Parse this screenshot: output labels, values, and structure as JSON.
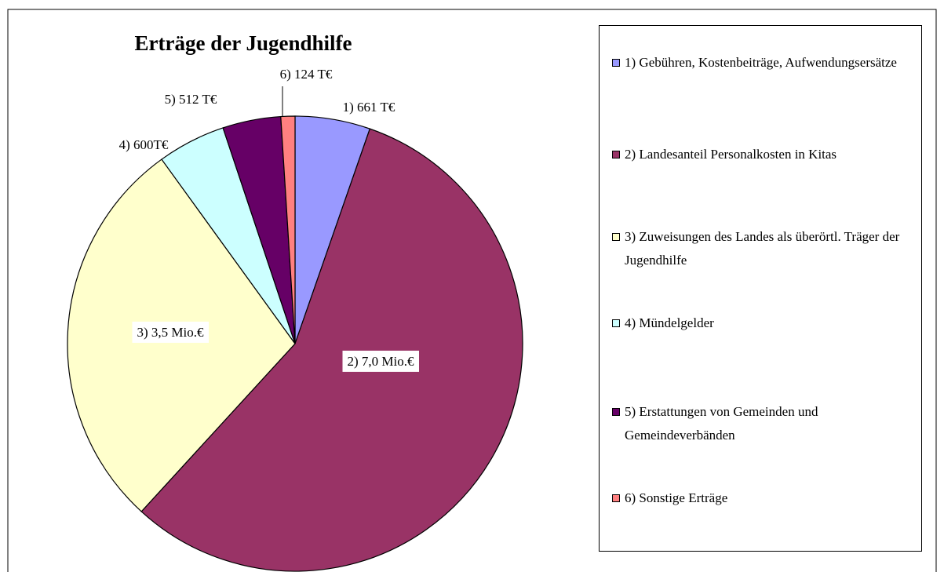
{
  "chart_data": {
    "type": "pie",
    "title": "Erträge der Jugendhilfe",
    "categories": [
      "1) Gebühren, Kostenbeiträge, Aufwendungsersätze",
      "2) Landesanteil Personalkosten in Kitas",
      "3) Zuweisungen des Landes als überörtl. Träger der Jugendhilfe",
      "4) Mündelgelder",
      "5) Erstattungen von Gemeinden und Gemeindeverbänden",
      "6) Sonstige Erträge"
    ],
    "values": [
      661,
      7000,
      3500,
      600,
      512,
      124
    ],
    "value_labels": [
      "1) 661 T€",
      "2) 7,0 Mio.€",
      "3) 3,5 Mio.€",
      "4) 600T€",
      "5) 512 T€",
      "6) 124 T€"
    ],
    "colors": [
      "#9999ff",
      "#993366",
      "#ffffcc",
      "#ccffff",
      "#660066",
      "#ff8080"
    ]
  }
}
